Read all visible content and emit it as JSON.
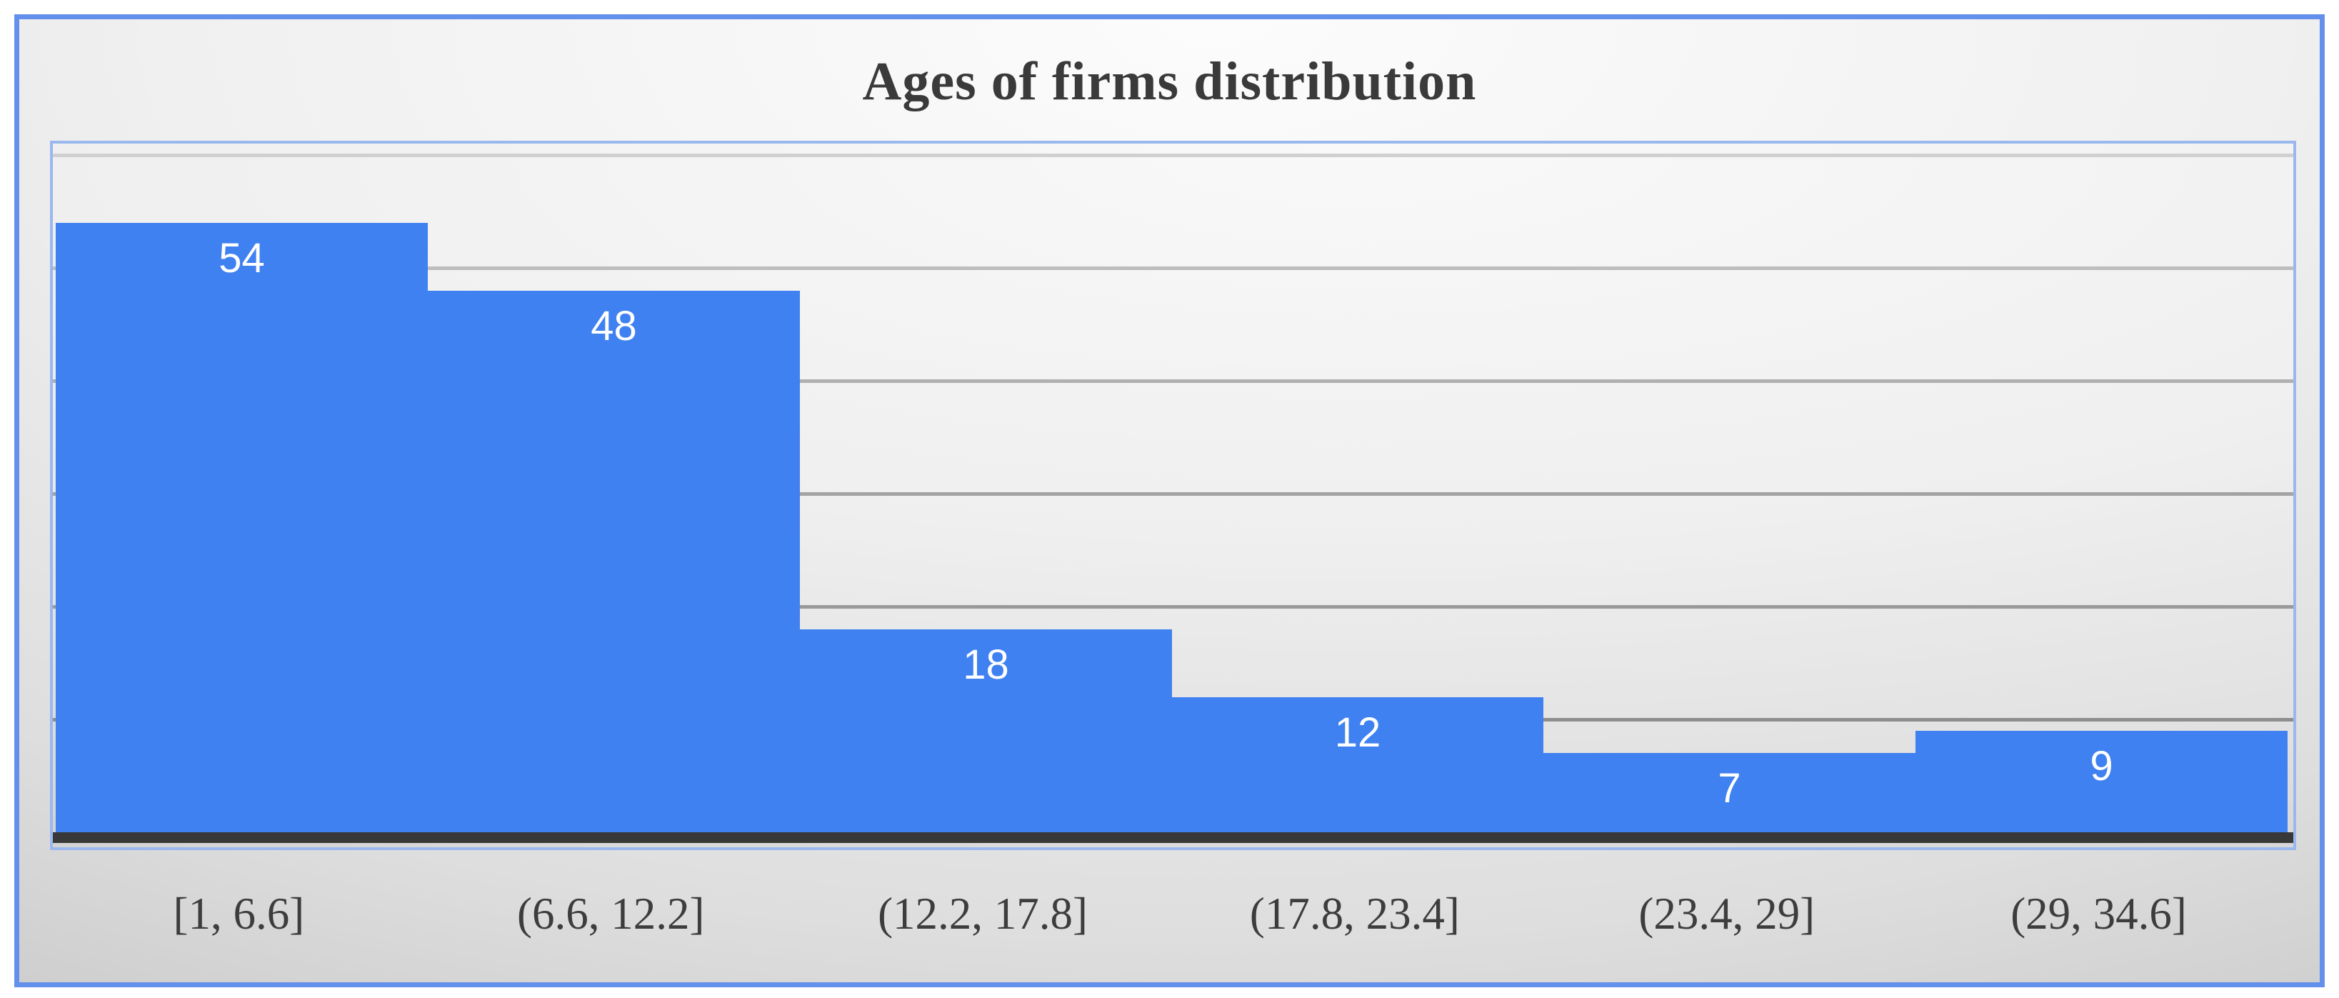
{
  "chart_data": {
    "type": "bar",
    "title": "Ages of firms distribution",
    "categories": [
      "[1, 6.6]",
      "(6.6, 12.2]",
      "(12.2, 17.8]",
      "(17.8, 23.4]",
      "(23.4, 29]",
      "(29, 34.6]"
    ],
    "values": [
      54,
      48,
      18,
      12,
      7,
      9
    ],
    "xlabel": "",
    "ylabel": "",
    "ylim": [
      0,
      61
    ],
    "gridlines": [
      10,
      20,
      30,
      40,
      50,
      60
    ],
    "bar_gap": 0,
    "legend": "none",
    "data_labels": "inside-end"
  },
  "ui": {
    "colors": {
      "bar_fill": "#3f81f1",
      "bar_label": "#ffffff",
      "outer_border": "#6290ea",
      "plot_border": "#9bb8ee",
      "axis_line": "#383838",
      "title_text": "#3a3a3a",
      "tick_text": "#3d3d3d"
    },
    "gridline_colors": {
      "10": "#8e8e8e",
      "20": "#9a9a9a",
      "30": "#a3a3a3",
      "40": "#b0b0b0",
      "50": "#bdbdbd",
      "60": "#d0d0d0"
    }
  }
}
